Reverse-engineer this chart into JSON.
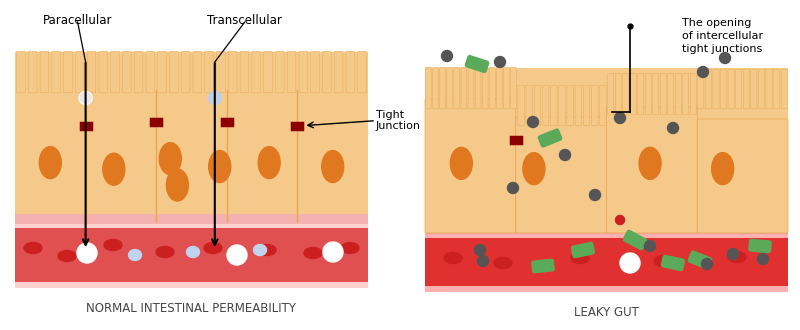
{
  "bg_color": "#ffffff",
  "left_panel": {
    "title": "NORMAL INTESTINAL PERMEABILITY",
    "label_paracellular": "Paracellular",
    "label_transcellular": "Transcellular",
    "label_tight_junction": "Tight\nJunction",
    "cell_color": "#f5c98a",
    "cell_border_color": "#e8a850",
    "blood_vessel_color": "#e05050",
    "blood_vessel_border": "#ffd0d0",
    "nucleus_color": "#e07820",
    "tight_junction_color": "#8b0000",
    "arrow_color": "#000000",
    "red_cell_color": "#cc2020",
    "paracellular_dot_color": "#e0e0e0",
    "transcellular_dot_color": "#c0d0e8"
  },
  "right_panel": {
    "title": "LEAKY GUT",
    "label_opening": "The opening\nof intercellular\ntight junctions",
    "cell_color": "#f5c98a",
    "cell_border_color": "#e8a850",
    "blood_vessel_color": "#e03030",
    "nucleus_color": "#e07820",
    "tight_junction_color": "#8b0000",
    "bacteria_color": "#5aaa5a",
    "dark_particle_color": "#555555",
    "red_cell_color": "#cc2020",
    "white_dot_color": "#f0f0f8"
  }
}
